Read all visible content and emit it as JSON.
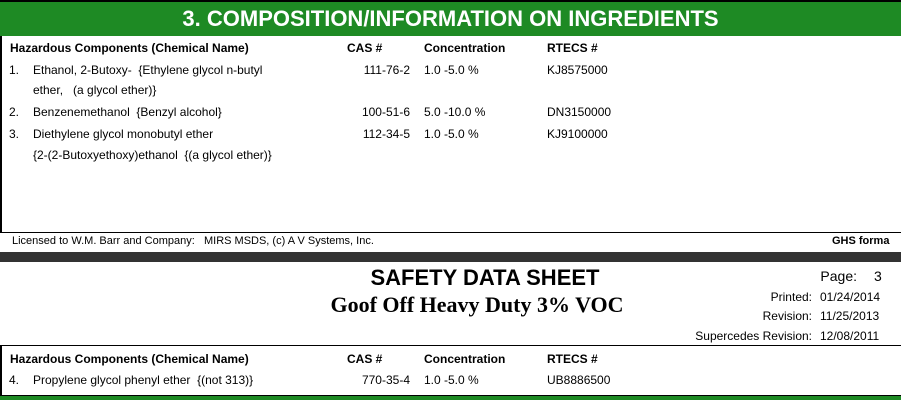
{
  "section": {
    "title": "3.  COMPOSITION/INFORMATION ON INGREDIENTS"
  },
  "columns": [
    "Hazardous Components (Chemical Name)",
    "CAS #",
    "Concentration",
    "RTECS #"
  ],
  "rows": [
    {
      "number": "1.",
      "name": [
        "Ethanol, 2-Butoxy-  {Ethylene glycol n-butyl",
        "ether,   (a glycol ether)}"
      ],
      "cas": "111-76-2",
      "concentration": "1.0 -5.0 %",
      "rtecs": "KJ8575000"
    },
    {
      "number": "2.",
      "name": [
        "Benzenemethanol  {Benzyl alcohol}"
      ],
      "cas": "100-51-6",
      "concentration": "5.0 -10.0 %",
      "rtecs": "DN3150000"
    },
    {
      "number": "3.",
      "name": [
        "Diethylene glycol monobutyl ether",
        "{2-(2-Butoxyethoxy)ethanol  {(a glycol ether)}"
      ],
      "cas": "112-34-5",
      "concentration": "1.0 -5.0 %",
      "rtecs": "KJ9100000"
    }
  ],
  "footer": {
    "license": "Licensed to W.M. Barr and Company:   MIRS MSDS, (c) A V Systems, Inc.",
    "format": "GHS forma"
  },
  "page_header": {
    "title": "SAFETY DATA SHEET",
    "product": "Goof Off Heavy Duty 3% VOC",
    "info": [
      {
        "label": "Page:",
        "value": "3"
      },
      {
        "label": "Printed:",
        "value": "01/24/2014"
      },
      {
        "label": "Revision:",
        "value": "11/25/2013"
      },
      {
        "label": "Supercedes Revision:",
        "value": "12/08/2011"
      }
    ]
  },
  "rows_continued": [
    {
      "number": "4.",
      "name": [
        "Propylene glycol phenyl ether  {(not 313)}"
      ],
      "cas": "770-35-4",
      "concentration": "1.0 -5.0 %",
      "rtecs": "UB8886500"
    }
  ]
}
